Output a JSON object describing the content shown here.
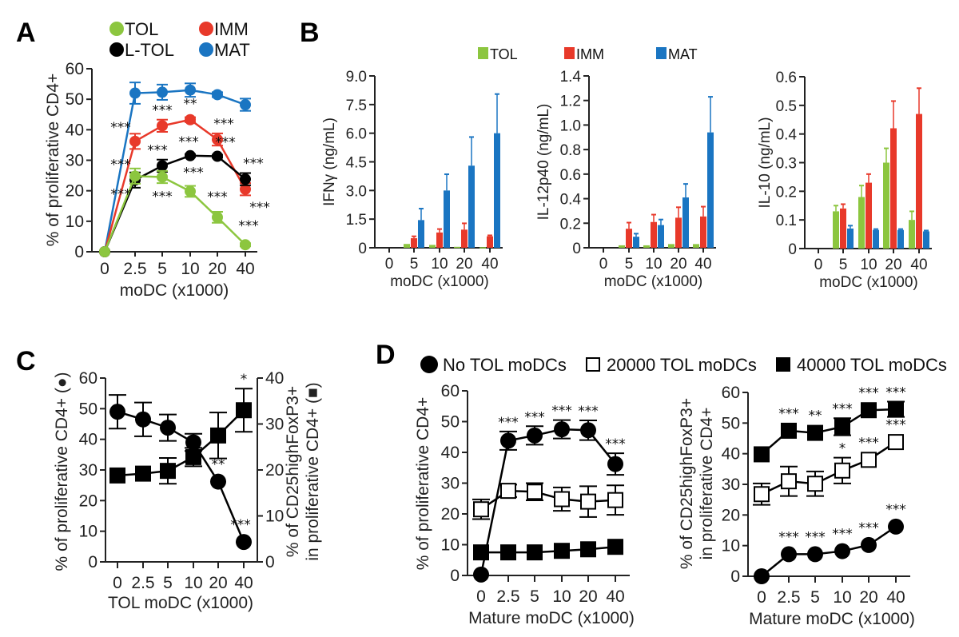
{
  "figure": {
    "panel_letters": [
      "A",
      "B",
      "C",
      "D"
    ]
  },
  "colors": {
    "TOL": "#8cc63f",
    "IMM": "#e8392a",
    "L-TOL": "#000000",
    "MAT": "#1a75c2",
    "black": "#000000"
  },
  "chart_data": [
    {
      "id": "A",
      "type": "line",
      "ylabel": "% of proliferative CD4+",
      "xlabel": "moDC (x1000)",
      "categories": [
        "0",
        "2.5",
        "5",
        "10",
        "20",
        "40"
      ],
      "ylim": [
        0,
        60
      ],
      "yticks": [
        "0",
        "10",
        "20",
        "30",
        "40",
        "50",
        "60"
      ],
      "legend": [
        "TOL",
        "IMM",
        "L-TOL",
        "MAT"
      ],
      "legend_position": "top",
      "series": [
        {
          "name": "MAT",
          "values": [
            0,
            52,
            52.3,
            53,
            51.5,
            48.2
          ],
          "err": [
            0,
            3.5,
            2.5,
            2.2,
            0.8,
            2.0
          ],
          "stars": [
            "",
            "",
            "",
            "",
            "",
            ""
          ]
        },
        {
          "name": "IMM",
          "values": [
            0,
            36.2,
            41.3,
            43.3,
            36.8,
            20.5
          ],
          "err": [
            0,
            2.5,
            2.0,
            0.8,
            2.0,
            2.0
          ],
          "stars": [
            "",
            "***",
            "***",
            "**",
            "***",
            "***"
          ]
        },
        {
          "name": "L-TOL",
          "values": [
            0,
            23.5,
            28.2,
            31.5,
            31.3,
            23.8
          ],
          "err": [
            0,
            2.5,
            2.0,
            0.5,
            0.5,
            2.0
          ],
          "stars": [
            "",
            "***",
            "***",
            "***",
            "***",
            "***"
          ]
        },
        {
          "name": "TOL",
          "values": [
            0,
            24.8,
            24.5,
            19.8,
            11.3,
            2.3
          ],
          "err": [
            0,
            2.5,
            2.0,
            1.8,
            1.8,
            0.5
          ],
          "stars": [
            "",
            "***",
            "***",
            "***",
            "***",
            "***"
          ]
        }
      ]
    },
    {
      "id": "B1",
      "type": "bar",
      "ylabel": "IFNγ (ng/mL)",
      "xlabel": "moDC (x1000)",
      "categories": [
        "0",
        "5",
        "10",
        "20",
        "40"
      ],
      "ylim": [
        0,
        9.0
      ],
      "yticks": [
        "0",
        "1.5",
        "3.0",
        "4.5",
        "6.0",
        "7.5",
        "9.0"
      ],
      "legend": [
        "TOL",
        "IMM",
        "MAT"
      ],
      "legend_position": "top",
      "series": [
        {
          "name": "TOL",
          "values": [
            0,
            0.2,
            0.15,
            0.05,
            0.03
          ],
          "err": [
            0,
            0,
            0,
            0,
            0
          ]
        },
        {
          "name": "IMM",
          "values": [
            0,
            0.5,
            0.8,
            0.95,
            0.6
          ],
          "err": [
            0,
            0.1,
            0.18,
            0.33,
            0.05
          ]
        },
        {
          "name": "MAT",
          "values": [
            0,
            1.45,
            3.0,
            4.3,
            6.0
          ],
          "err": [
            0,
            0.6,
            0.85,
            1.5,
            2.05
          ]
        }
      ]
    },
    {
      "id": "B2",
      "type": "bar",
      "ylabel": "IL-12p40 (ng/mL)",
      "xlabel": "moDC (x1000)",
      "categories": [
        "0",
        "5",
        "10",
        "20",
        "40"
      ],
      "ylim": [
        0,
        1.4
      ],
      "yticks": [
        "0",
        "0.2",
        "0.4",
        "0.6",
        "0.8",
        "1.0",
        "1.2",
        "1.4"
      ],
      "series": [
        {
          "name": "TOL",
          "values": [
            0,
            0.02,
            0.02,
            0.03,
            0.03
          ],
          "err": [
            0,
            0,
            0,
            0,
            0
          ]
        },
        {
          "name": "IMM",
          "values": [
            0,
            0.155,
            0.21,
            0.245,
            0.255
          ],
          "err": [
            0,
            0.05,
            0.06,
            0.085,
            0.08
          ]
        },
        {
          "name": "MAT",
          "values": [
            0,
            0.09,
            0.185,
            0.41,
            0.94
          ],
          "err": [
            0,
            0.025,
            0.045,
            0.11,
            0.29
          ]
        }
      ]
    },
    {
      "id": "B3",
      "type": "bar",
      "ylabel": "IL-10 (ng/mL)",
      "xlabel": "moDC (x1000)",
      "categories": [
        "0",
        "5",
        "10",
        "20",
        "40"
      ],
      "ylim": [
        0,
        0.6
      ],
      "yticks": [
        "0",
        "0.1",
        "0.2",
        "0.3",
        "0.4",
        "0.5",
        "0.6"
      ],
      "series": [
        {
          "name": "TOL",
          "values": [
            0,
            0.13,
            0.18,
            0.3,
            0.1
          ],
          "err": [
            0,
            0.02,
            0.04,
            0.05,
            0.03
          ]
        },
        {
          "name": "IMM",
          "values": [
            0,
            0.14,
            0.23,
            0.42,
            0.47
          ],
          "err": [
            0,
            0.015,
            0.03,
            0.095,
            0.09
          ]
        },
        {
          "name": "MAT",
          "values": [
            0,
            0.07,
            0.065,
            0.065,
            0.06
          ],
          "err": [
            0,
            0.01,
            0.003,
            0.003,
            0.003
          ]
        }
      ]
    },
    {
      "id": "C",
      "type": "line",
      "ylabel_left": "% of proliferative CD4+ (●)",
      "ylabel_right_line1": "% of CD25highFoxP3+",
      "ylabel_right_line2": "in proliferative CD4+ (■)",
      "xlabel": "TOL moDC (x1000)",
      "categories": [
        "0",
        "2.5",
        "5",
        "10",
        "20",
        "40"
      ],
      "ylim_left": [
        0,
        60
      ],
      "ylim_right": [
        0,
        40
      ],
      "yticks_left": [
        "0",
        "10",
        "20",
        "30",
        "40",
        "50",
        "60"
      ],
      "yticks_right": [
        "0",
        "10",
        "20",
        "30",
        "40"
      ],
      "series": [
        {
          "name": "proliferative CD4+",
          "axis": "left",
          "marker": "circle",
          "values": [
            49,
            46.5,
            43.8,
            39,
            26.2,
            6.5
          ],
          "err": [
            5.5,
            5.5,
            4.3,
            2.8,
            0,
            0
          ],
          "stars": [
            "",
            "",
            "",
            "",
            "**",
            "***"
          ]
        },
        {
          "name": "CD25highFoxP3+",
          "axis": "right",
          "marker": "square",
          "values": [
            18.8,
            19.2,
            19.8,
            22.8,
            27.5,
            33
          ],
          "err": [
            0,
            0,
            2.8,
            2.0,
            5.0,
            4.7
          ],
          "stars": [
            "",
            "",
            "",
            "",
            "",
            "*"
          ]
        }
      ]
    },
    {
      "id": "D1",
      "type": "line",
      "ylabel": "% of proliferative CD4+",
      "xlabel": "Mature moDC (x1000)",
      "categories": [
        "0",
        "2.5",
        "5",
        "10",
        "20",
        "40"
      ],
      "ylim": [
        0,
        60
      ],
      "yticks": [
        "0",
        "10",
        "20",
        "30",
        "40",
        "50",
        "60"
      ],
      "legend": [
        "No TOL moDCs",
        "20000 TOL moDCs",
        "40000 TOL moDCs"
      ],
      "legend_position": "top",
      "series": [
        {
          "name": "No TOL moDCs",
          "marker": "circle",
          "values": [
            0.3,
            43.8,
            45.5,
            47.5,
            47.2,
            36.2
          ],
          "err": [
            0,
            3,
            3,
            3,
            3.2,
            3.5
          ],
          "stars": [
            "",
            "***",
            "***",
            "***",
            "***",
            "***"
          ]
        },
        {
          "name": "20000 TOL moDCs",
          "marker": "open-square",
          "values": [
            21.5,
            27.5,
            27.2,
            24.8,
            24,
            24.5
          ],
          "err": [
            3.2,
            2.0,
            2.8,
            3.8,
            5,
            4.8
          ],
          "stars": [
            "",
            "",
            "",
            "",
            "",
            ""
          ]
        },
        {
          "name": "40000 TOL moDCs",
          "marker": "square",
          "values": [
            7.5,
            7.5,
            7.5,
            8,
            8.5,
            9.3
          ],
          "err": [
            0,
            0,
            0,
            0,
            0,
            0
          ],
          "stars": [
            "",
            "",
            "",
            "",
            "",
            ""
          ]
        }
      ]
    },
    {
      "id": "D2",
      "type": "line",
      "ylabel_line1": "% of CD25highFoxP3+",
      "ylabel_line2": "in proliferative CD4+",
      "xlabel": "Mature moDC (x1000)",
      "categories": [
        "0",
        "2.5",
        "5",
        "10",
        "20",
        "40"
      ],
      "ylim": [
        0,
        60
      ],
      "yticks": [
        "0",
        "10",
        "20",
        "30",
        "40",
        "50",
        "60"
      ],
      "series": [
        {
          "name": "40000 TOL moDCs",
          "marker": "square",
          "values": [
            39.8,
            47.5,
            46.8,
            48.8,
            54.2,
            54.5
          ],
          "err": [
            0,
            0,
            0,
            2.8,
            0,
            2.5
          ],
          "stars": [
            "",
            "***",
            "**",
            "***",
            "***",
            "***"
          ]
        },
        {
          "name": "20000 TOL moDCs",
          "marker": "open-square",
          "values": [
            26.8,
            31,
            30.2,
            34.5,
            38,
            43.8
          ],
          "err": [
            3.5,
            4.8,
            4.0,
            4.2,
            0,
            0
          ],
          "stars": [
            "",
            "",
            "",
            "*",
            "***",
            "***"
          ]
        },
        {
          "name": "No TOL moDCs",
          "marker": "circle",
          "values": [
            0,
            7.2,
            7.2,
            8.2,
            10.2,
            16.2
          ],
          "err": [
            0,
            0,
            0,
            0,
            0,
            0
          ],
          "stars": [
            "",
            "***",
            "***",
            "***",
            "***",
            "***"
          ]
        }
      ]
    }
  ]
}
